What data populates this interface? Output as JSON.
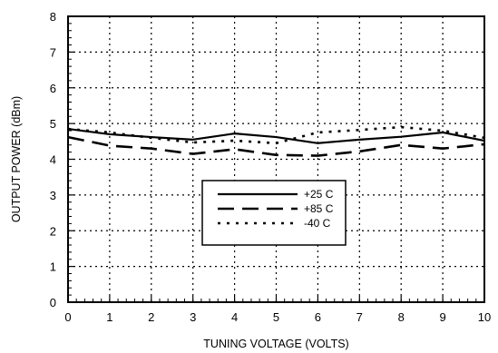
{
  "chart_data": {
    "type": "line",
    "title": "",
    "xlabel": "TUNING VOLTAGE (VOLTS)",
    "ylabel": "OUTPUT POWER (dBm)",
    "xlim": [
      0,
      10
    ],
    "ylim": [
      0,
      8
    ],
    "x_ticks": [
      "0",
      "1",
      "2",
      "3",
      "4",
      "5",
      "6",
      "7",
      "8",
      "9",
      "10"
    ],
    "y_ticks": [
      "0",
      "1",
      "2",
      "3",
      "4",
      "5",
      "6",
      "7",
      "8"
    ],
    "grid": true,
    "legend_placement": "center",
    "x": [
      0,
      1,
      2,
      3,
      4,
      5,
      6,
      7,
      8,
      9,
      10
    ],
    "series": [
      {
        "name": "+25 C",
        "line_style": "solid",
        "values": [
          4.85,
          4.7,
          4.62,
          4.55,
          4.72,
          4.62,
          4.45,
          4.55,
          4.63,
          4.75,
          4.52
        ]
      },
      {
        "name": "+85 C",
        "line_style": "dashed",
        "values": [
          4.62,
          4.38,
          4.3,
          4.15,
          4.28,
          4.12,
          4.1,
          4.22,
          4.4,
          4.3,
          4.42
        ]
      },
      {
        "name": "-40 C",
        "line_style": "dotted",
        "values": [
          4.85,
          4.75,
          4.6,
          4.47,
          4.52,
          4.45,
          4.75,
          4.82,
          4.9,
          4.8,
          4.6
        ]
      }
    ],
    "colors": {
      "line": "#000000",
      "grid": "#000000",
      "background": "#ffffff"
    }
  }
}
